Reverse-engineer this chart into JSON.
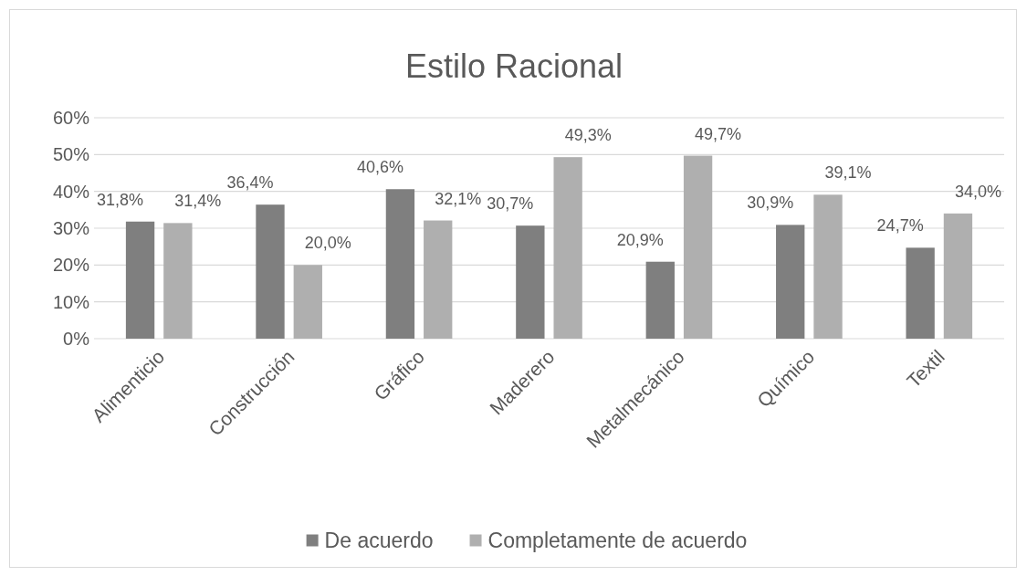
{
  "chart_data": {
    "type": "bar",
    "title": "Estilo Racional",
    "categories": [
      "Alimenticio",
      "Construcción",
      "Gráfico",
      "Maderero",
      "Metalmecánico",
      "Químico",
      "Textil"
    ],
    "series": [
      {
        "name": "De acuerdo",
        "color": "#7f7f7f",
        "values": [
          31.8,
          36.4,
          40.6,
          30.7,
          20.9,
          30.9,
          24.7
        ],
        "value_labels": [
          "31,8%",
          "36,4%",
          "40,6%",
          "30,7%",
          "20,9%",
          "30,9%",
          "24,7%"
        ]
      },
      {
        "name": "Completamente de acuerdo",
        "color": "#afafaf",
        "values": [
          31.4,
          20.0,
          32.1,
          49.3,
          49.7,
          39.1,
          34.0
        ],
        "value_labels": [
          "31,4%",
          "20,0%",
          "32,1%",
          "49,3%",
          "49,7%",
          "39,1%",
          "34,0%"
        ]
      }
    ],
    "ylim": [
      0,
      60
    ],
    "yticks": [
      {
        "value": 0,
        "label": "0%"
      },
      {
        "value": 10,
        "label": "10%"
      },
      {
        "value": 20,
        "label": "20%"
      },
      {
        "value": 30,
        "label": "30%"
      },
      {
        "value": 40,
        "label": "40%"
      },
      {
        "value": 50,
        "label": "50%"
      },
      {
        "value": 60,
        "label": "60%"
      }
    ],
    "grid": "y",
    "legend": "bottom"
  }
}
